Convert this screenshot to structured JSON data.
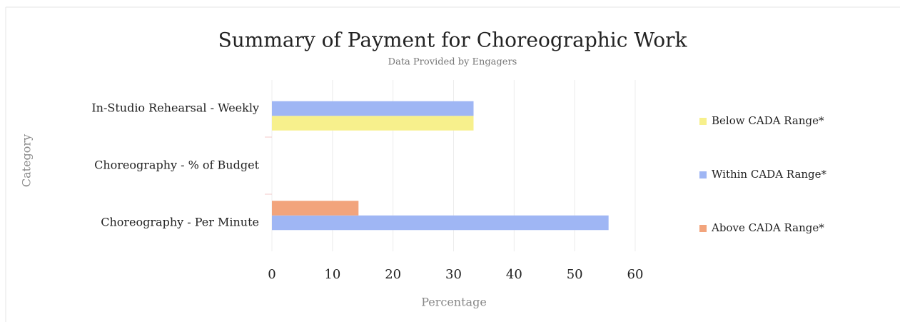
{
  "chart_data": {
    "type": "bar",
    "orientation": "horizontal",
    "title": "Summary of Payment for Choreographic Work",
    "subtitle": "Data Provided by Engagers",
    "x_label": "Percentage",
    "y_label": "Category",
    "categories": [
      "In-Studio Rehearsal - Weekly",
      "Choreography - % of Budget",
      "Choreography - Per Minute"
    ],
    "series": [
      {
        "name": "Below CADA Range*",
        "color": "#f7f08c",
        "values": [
          33.3,
          0,
          0
        ]
      },
      {
        "name": "Within CADA Range*",
        "color": "#9fb6f4",
        "values": [
          33.3,
          0,
          55.6
        ]
      },
      {
        "name": "Above CADA Range*",
        "color": "#f2a47c",
        "values": [
          0,
          0,
          14.3
        ]
      }
    ],
    "xlim": [
      0,
      60
    ],
    "xticks": [
      0,
      10,
      20,
      30,
      40,
      50,
      60
    ],
    "grid": true,
    "legend": "right"
  }
}
